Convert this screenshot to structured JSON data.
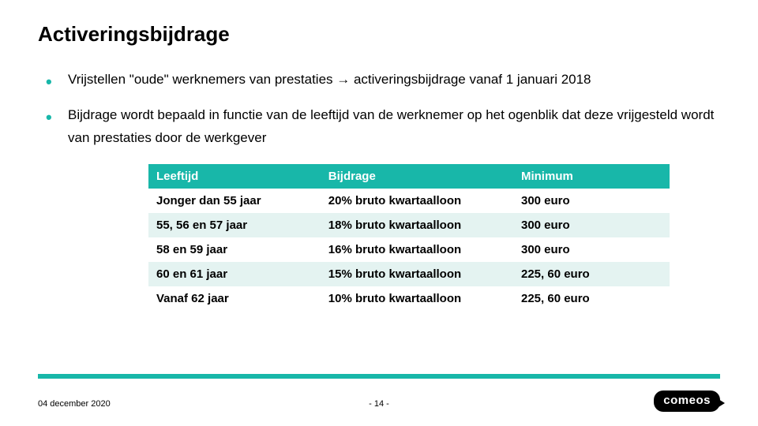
{
  "title": "Activeringsbijdrage",
  "bullets": {
    "b1": "Vrijstellen \"oude\" werknemers van prestaties → activeringsbijdrage vanaf 1 januari 2018",
    "b2": "Bijdrage wordt bepaald in functie van de leeftijd van de werknemer op het ogenblik dat deze vrijgesteld wordt van prestaties door de werkgever"
  },
  "table": {
    "headers": {
      "c1": "Leeftijd",
      "c2": "Bijdrage",
      "c3": "Minimum"
    },
    "rows": [
      {
        "c1": "Jonger dan 55 jaar",
        "c2": "20% bruto kwartaalloon",
        "c3": "300 euro"
      },
      {
        "c1": "55, 56 en 57 jaar",
        "c2": "18% bruto kwartaalloon",
        "c3": "300 euro"
      },
      {
        "c1": "58 en 59 jaar",
        "c2": "16% bruto kwartaalloon",
        "c3": "300 euro"
      },
      {
        "c1": "60 en 61 jaar",
        "c2": "15% bruto kwartaalloon",
        "c3": "225, 60 euro"
      },
      {
        "c1": "Vanaf 62 jaar",
        "c2": "10% bruto kwartaalloon",
        "c3": "225, 60 euro"
      }
    ],
    "header_bg": "#18b7a9",
    "header_color": "#ffffff",
    "row_alt_bg": "#e4f3f1",
    "row_bg": "#ffffff",
    "font_size": 15
  },
  "footer": {
    "date": "04 december 2020",
    "page": "- 14 -",
    "logo_text": "comeos"
  },
  "accent_color": "#18b7a9",
  "background_color": "#ffffff"
}
